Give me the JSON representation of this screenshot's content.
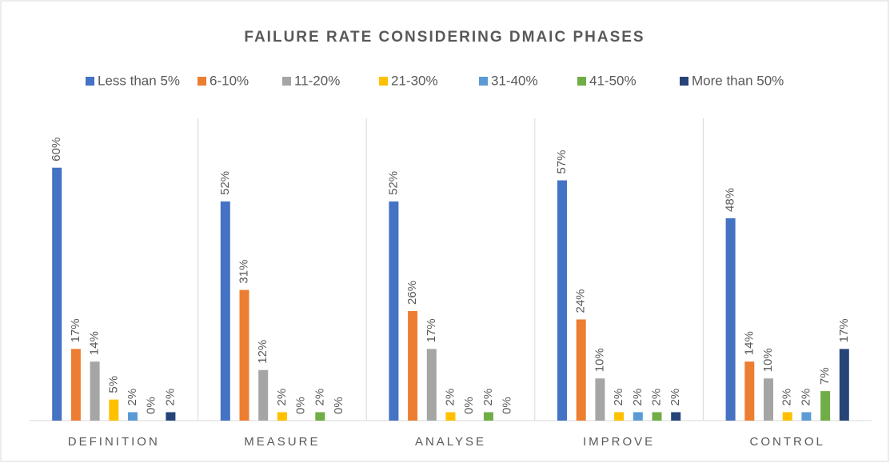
{
  "chart_data": {
    "type": "bar",
    "title": "FAILURE RATE CONSIDERING DMAIC PHASES",
    "categories": [
      "DEFINITION",
      "MEASURE",
      "ANALYSE",
      "IMPROVE",
      "CONTROL"
    ],
    "series": [
      {
        "name": "Less than 5%",
        "color": "#4472c4",
        "values": [
          60,
          52,
          52,
          57,
          48
        ],
        "value_labels": [
          "60%",
          "52%",
          "52%",
          "57%",
          "48%"
        ]
      },
      {
        "name": "6-10%",
        "color": "#ed7d31",
        "values": [
          17,
          31,
          26,
          24,
          14
        ],
        "value_labels": [
          "17%",
          "31%",
          "26%",
          "24%",
          "14%"
        ]
      },
      {
        "name": "11-20%",
        "color": "#a5a5a5",
        "values": [
          14,
          12,
          17,
          10,
          10
        ],
        "value_labels": [
          "14%",
          "12%",
          "17%",
          "10%",
          "10%"
        ]
      },
      {
        "name": "21-30%",
        "color": "#ffc000",
        "values": [
          5,
          2,
          2,
          2,
          2
        ],
        "value_labels": [
          "5%",
          "2%",
          "2%",
          "2%",
          "2%"
        ]
      },
      {
        "name": "31-40%",
        "color": "#5b9bd5",
        "values": [
          2,
          0,
          0,
          2,
          2
        ],
        "value_labels": [
          "2%",
          "0%",
          "0%",
          "2%",
          "2%"
        ]
      },
      {
        "name": "41-50%",
        "color": "#70ad47",
        "values": [
          0,
          2,
          2,
          2,
          7
        ],
        "value_labels": [
          "0%",
          "2%",
          "2%",
          "2%",
          "7%"
        ]
      },
      {
        "name": "More than 50%",
        "color": "#264478",
        "values": [
          2,
          0,
          0,
          2,
          17
        ],
        "value_labels": [
          "2%",
          "0%",
          "0%",
          "2%",
          "17%"
        ]
      }
    ],
    "ylim": [
      0,
      70
    ],
    "legend": "top"
  }
}
